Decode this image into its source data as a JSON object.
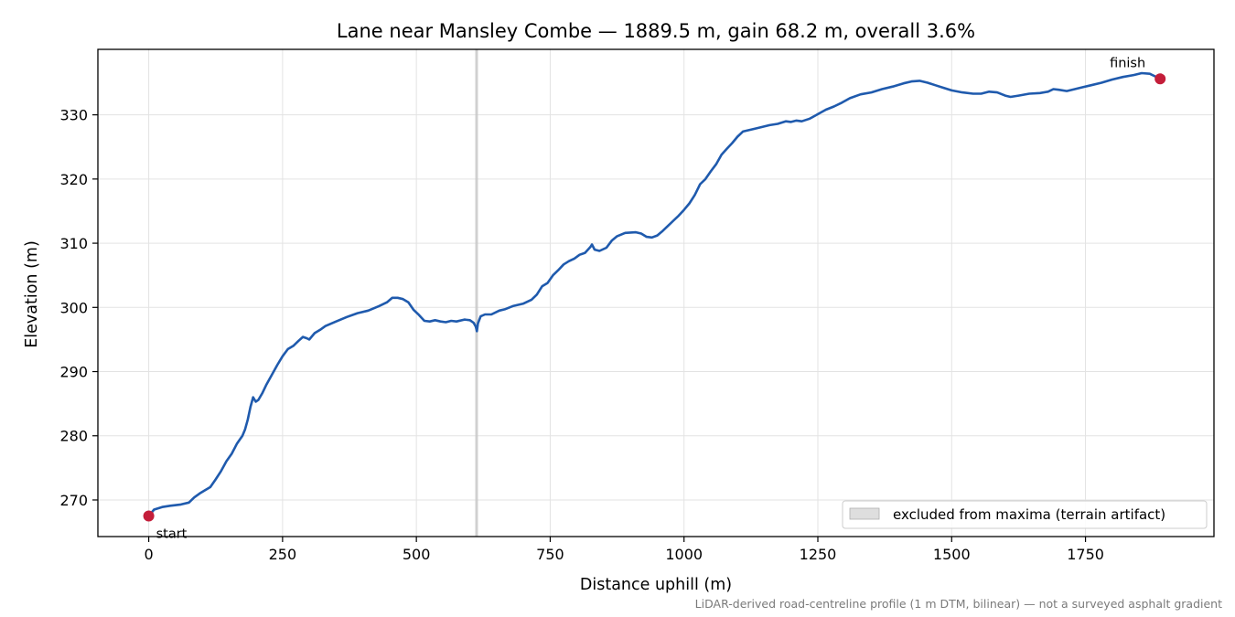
{
  "chart_data": {
    "type": "line",
    "title": "Lane near Mansley Combe — 1889.5 m, gain 68.2 m, overall 3.6%",
    "xlabel": "Distance uphill (m)",
    "ylabel": "Elevation (m)",
    "xlim": [
      -95,
      1990
    ],
    "ylim": [
      264.3,
      340.2
    ],
    "xticks": [
      0,
      250,
      500,
      750,
      1000,
      1250,
      1500,
      1750
    ],
    "yticks": [
      270,
      280,
      290,
      300,
      310,
      320,
      330
    ],
    "grid": true,
    "legend": {
      "placement": "lower-right",
      "entries": [
        "excluded from maxima (terrain artifact)"
      ]
    },
    "excluded_band": {
      "x_from": 610,
      "x_to": 615,
      "label": "excluded from maxima (terrain artifact)"
    },
    "series": [
      {
        "color": "#1f5aad",
        "points": [
          [
            0,
            267.5
          ],
          [
            10,
            268.5
          ],
          [
            25,
            268.9
          ],
          [
            40,
            269.1
          ],
          [
            60,
            269.3
          ],
          [
            75,
            269.6
          ],
          [
            85,
            270.4
          ],
          [
            95,
            271.0
          ],
          [
            105,
            271.5
          ],
          [
            115,
            272.0
          ],
          [
            125,
            273.2
          ],
          [
            135,
            274.5
          ],
          [
            145,
            276.0
          ],
          [
            155,
            277.2
          ],
          [
            165,
            278.8
          ],
          [
            175,
            280.0
          ],
          [
            180,
            281.0
          ],
          [
            185,
            282.5
          ],
          [
            190,
            284.5
          ],
          [
            195,
            286.0
          ],
          [
            200,
            285.3
          ],
          [
            205,
            285.6
          ],
          [
            212,
            286.6
          ],
          [
            220,
            288.0
          ],
          [
            230,
            289.5
          ],
          [
            240,
            291.0
          ],
          [
            250,
            292.4
          ],
          [
            260,
            293.5
          ],
          [
            270,
            294.0
          ],
          [
            280,
            294.8
          ],
          [
            288,
            295.4
          ],
          [
            295,
            295.2
          ],
          [
            300,
            295.0
          ],
          [
            310,
            296.0
          ],
          [
            320,
            296.5
          ],
          [
            330,
            297.1
          ],
          [
            350,
            297.8
          ],
          [
            370,
            298.5
          ],
          [
            390,
            299.1
          ],
          [
            410,
            299.5
          ],
          [
            430,
            300.2
          ],
          [
            445,
            300.8
          ],
          [
            455,
            301.5
          ],
          [
            465,
            301.5
          ],
          [
            475,
            301.3
          ],
          [
            485,
            300.8
          ],
          [
            495,
            299.6
          ],
          [
            505,
            298.8
          ],
          [
            515,
            297.9
          ],
          [
            525,
            297.8
          ],
          [
            535,
            298.0
          ],
          [
            545,
            297.8
          ],
          [
            555,
            297.7
          ],
          [
            565,
            297.9
          ],
          [
            575,
            297.8
          ],
          [
            590,
            298.1
          ],
          [
            600,
            298.0
          ],
          [
            607,
            297.6
          ],
          [
            611,
            297.0
          ],
          [
            613,
            296.3
          ],
          [
            615,
            297.5
          ],
          [
            620,
            298.6
          ],
          [
            628,
            298.9
          ],
          [
            640,
            298.9
          ],
          [
            655,
            299.5
          ],
          [
            665,
            299.7
          ],
          [
            680,
            300.2
          ],
          [
            700,
            300.6
          ],
          [
            715,
            301.2
          ],
          [
            725,
            302.0
          ],
          [
            735,
            303.3
          ],
          [
            745,
            303.8
          ],
          [
            755,
            305.0
          ],
          [
            765,
            305.8
          ],
          [
            775,
            306.7
          ],
          [
            785,
            307.2
          ],
          [
            795,
            307.6
          ],
          [
            805,
            308.2
          ],
          [
            815,
            308.5
          ],
          [
            825,
            309.4
          ],
          [
            828,
            309.8
          ],
          [
            833,
            309.0
          ],
          [
            842,
            308.8
          ],
          [
            855,
            309.3
          ],
          [
            865,
            310.4
          ],
          [
            875,
            311.1
          ],
          [
            890,
            311.6
          ],
          [
            910,
            311.7
          ],
          [
            920,
            311.5
          ],
          [
            930,
            311.0
          ],
          [
            940,
            310.9
          ],
          [
            950,
            311.2
          ],
          [
            960,
            311.9
          ],
          [
            970,
            312.7
          ],
          [
            980,
            313.5
          ],
          [
            990,
            314.3
          ],
          [
            1000,
            315.2
          ],
          [
            1010,
            316.2
          ],
          [
            1020,
            317.5
          ],
          [
            1030,
            319.2
          ],
          [
            1040,
            320.0
          ],
          [
            1050,
            321.2
          ],
          [
            1060,
            322.3
          ],
          [
            1070,
            323.8
          ],
          [
            1080,
            324.7
          ],
          [
            1090,
            325.6
          ],
          [
            1100,
            326.6
          ],
          [
            1110,
            327.4
          ],
          [
            1120,
            327.6
          ],
          [
            1130,
            327.8
          ],
          [
            1145,
            328.1
          ],
          [
            1160,
            328.4
          ],
          [
            1175,
            328.6
          ],
          [
            1190,
            329.0
          ],
          [
            1200,
            328.9
          ],
          [
            1210,
            329.1
          ],
          [
            1220,
            329.0
          ],
          [
            1235,
            329.4
          ],
          [
            1250,
            330.1
          ],
          [
            1265,
            330.8
          ],
          [
            1280,
            331.3
          ],
          [
            1295,
            331.9
          ],
          [
            1310,
            332.6
          ],
          [
            1330,
            333.2
          ],
          [
            1350,
            333.5
          ],
          [
            1370,
            334.0
          ],
          [
            1390,
            334.4
          ],
          [
            1410,
            334.9
          ],
          [
            1425,
            335.2
          ],
          [
            1440,
            335.3
          ],
          [
            1455,
            335.0
          ],
          [
            1470,
            334.6
          ],
          [
            1485,
            334.2
          ],
          [
            1500,
            333.8
          ],
          [
            1520,
            333.5
          ],
          [
            1540,
            333.3
          ],
          [
            1555,
            333.3
          ],
          [
            1570,
            333.6
          ],
          [
            1585,
            333.5
          ],
          [
            1600,
            333.0
          ],
          [
            1610,
            332.8
          ],
          [
            1625,
            333.0
          ],
          [
            1645,
            333.3
          ],
          [
            1665,
            333.4
          ],
          [
            1680,
            333.6
          ],
          [
            1690,
            334.0
          ],
          [
            1700,
            333.9
          ],
          [
            1715,
            333.7
          ],
          [
            1730,
            334.0
          ],
          [
            1745,
            334.3
          ],
          [
            1760,
            334.6
          ],
          [
            1780,
            335.0
          ],
          [
            1800,
            335.5
          ],
          [
            1820,
            335.9
          ],
          [
            1840,
            336.2
          ],
          [
            1855,
            336.5
          ],
          [
            1870,
            336.4
          ],
          [
            1880,
            336.0
          ],
          [
            1889.5,
            335.6
          ]
        ]
      }
    ],
    "endpoints": [
      {
        "label": "start",
        "x": 0,
        "y": 267.5
      },
      {
        "label": "finish",
        "x": 1889.5,
        "y": 335.6
      }
    ],
    "footnote": "LiDAR-derived road-centreline profile (1 m DTM, bilinear) — not a surveyed asphalt gradient",
    "colors": {
      "line": "#1f5aad",
      "markers": "#c41e3a",
      "band": "#c8c8c8"
    }
  }
}
